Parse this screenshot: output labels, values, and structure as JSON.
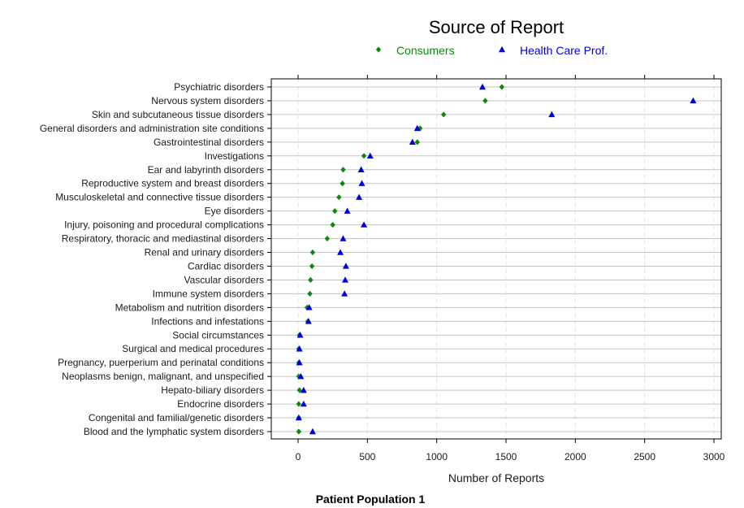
{
  "chart_data": {
    "type": "scatter",
    "title": "Source of Report",
    "xlabel": "Number of Reports",
    "caption": "Patient Population 1",
    "xlim": [
      -150,
      3060
    ],
    "xticks": [
      0,
      500,
      1000,
      1500,
      2000,
      2500,
      3000
    ],
    "legend_position": "top-center",
    "grid": true,
    "categories": [
      "Psychiatric disorders",
      "Nervous system disorders",
      "Skin and subcutaneous tissue disorders",
      "General disorders and administration site conditions",
      "Gastrointestinal disorders",
      "Investigations",
      "Ear and labyrinth disorders",
      "Reproductive system and breast disorders",
      "Musculoskeletal and connective tissue disorders",
      "Eye disorders",
      "Injury, poisoning and procedural complications",
      "Respiratory, thoracic and mediastinal disorders",
      "Renal and urinary disorders",
      "Cardiac disorders",
      "Vascular disorders",
      "Immune system disorders",
      "Metabolism and nutrition disorders",
      "Infections and infestations",
      "Social circumstances",
      "Surgical and medical procedures",
      "Pregnancy, puerperium and perinatal conditions",
      "Neoplasms benign, malignant, and unspecified",
      "Hepato-biliary disorders",
      "Endocrine disorders",
      "Congenital and familial/genetic disorders",
      "Blood and the lymphatic system disorders"
    ],
    "series": [
      {
        "name": "Consumers",
        "color": "#0a8a0a",
        "marker": "diamond",
        "values": [
          1470,
          1350,
          1050,
          880,
          860,
          475,
          325,
          320,
          295,
          265,
          250,
          210,
          105,
          100,
          90,
          85,
          65,
          70,
          10,
          5,
          5,
          5,
          10,
          5,
          5,
          5
        ]
      },
      {
        "name": "Health Care Prof.",
        "color": "#0000dd",
        "marker": "triangle",
        "values": [
          1330,
          2850,
          1830,
          860,
          825,
          520,
          455,
          460,
          440,
          355,
          475,
          325,
          305,
          345,
          340,
          335,
          80,
          75,
          15,
          10,
          10,
          20,
          40,
          40,
          5,
          105
        ]
      }
    ]
  }
}
